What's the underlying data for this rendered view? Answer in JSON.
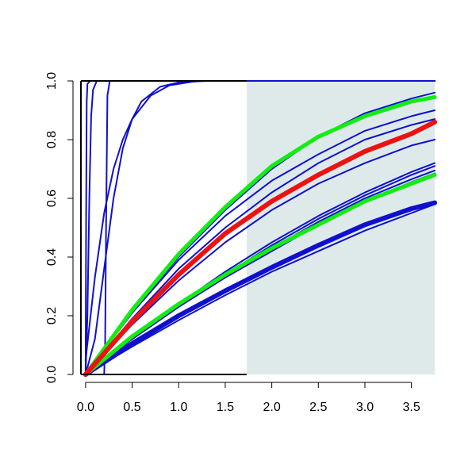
{
  "chart_data": {
    "type": "line",
    "title": "",
    "xlabel": "",
    "ylabel": "",
    "xlim": [
      -0.05,
      3.75
    ],
    "ylim": [
      0,
      1
    ],
    "x_ticks": [
      0.0,
      0.5,
      1.0,
      1.5,
      2.0,
      2.5,
      3.0,
      3.5
    ],
    "x_tick_labels": [
      "0.0",
      "0.5",
      "1.0",
      "1.5",
      "2.0",
      "2.5",
      "3.0",
      "3.5"
    ],
    "y_ticks": [
      0.0,
      0.2,
      0.4,
      0.6,
      0.8,
      1.0
    ],
    "y_tick_labels": [
      "0.0",
      "0.2",
      "0.4",
      "0.6",
      "0.8",
      "1.0"
    ],
    "grid": false,
    "legend": "none",
    "shaded_region": {
      "x_from": 1.73,
      "x_to": 3.75,
      "color": "#deeaea"
    },
    "colors": {
      "blue": "#1010cc",
      "red": "#ee1111",
      "green": "#11ee11",
      "axis": "#000000"
    },
    "series": [
      {
        "color": "blue",
        "width": 2,
        "points": [
          [
            0.0,
            0.0
          ],
          [
            0.005,
            0.5
          ],
          [
            0.012,
            0.93
          ],
          [
            0.02,
            0.99
          ],
          [
            0.05,
            1.0
          ],
          [
            3.75,
            1.0
          ]
        ]
      },
      {
        "color": "blue",
        "width": 2,
        "points": [
          [
            0.0,
            0.0
          ],
          [
            0.02,
            0.2
          ],
          [
            0.04,
            0.6
          ],
          [
            0.06,
            0.88
          ],
          [
            0.08,
            0.97
          ],
          [
            0.12,
            1.0
          ],
          [
            3.75,
            1.0
          ]
        ]
      },
      {
        "color": "blue",
        "width": 2,
        "points": [
          [
            0.2,
            0.0
          ],
          [
            0.21,
            0.1
          ],
          [
            0.22,
            0.5
          ],
          [
            0.235,
            0.95
          ],
          [
            0.26,
            1.0
          ],
          [
            3.75,
            1.0
          ]
        ]
      },
      {
        "color": "blue",
        "width": 2,
        "points": [
          [
            0.0,
            0.05
          ],
          [
            0.1,
            0.33
          ],
          [
            0.2,
            0.55
          ],
          [
            0.3,
            0.7
          ],
          [
            0.4,
            0.8
          ],
          [
            0.5,
            0.87
          ],
          [
            0.7,
            0.95
          ],
          [
            0.9,
            0.985
          ],
          [
            1.2,
            1.0
          ],
          [
            3.75,
            1.0
          ]
        ]
      },
      {
        "color": "blue",
        "width": 2,
        "points": [
          [
            0.0,
            0.0
          ],
          [
            0.1,
            0.12
          ],
          [
            0.2,
            0.36
          ],
          [
            0.3,
            0.6
          ],
          [
            0.4,
            0.77
          ],
          [
            0.5,
            0.87
          ],
          [
            0.6,
            0.93
          ],
          [
            0.8,
            0.98
          ],
          [
            1.0,
            0.995
          ],
          [
            1.3,
            1.0
          ],
          [
            3.75,
            1.0
          ]
        ]
      },
      {
        "color": "blue",
        "width": 2,
        "points": [
          [
            0.0,
            0.0
          ],
          [
            0.5,
            0.21
          ],
          [
            1.0,
            0.39
          ],
          [
            1.5,
            0.54
          ],
          [
            2.0,
            0.66
          ],
          [
            2.5,
            0.75
          ],
          [
            3.0,
            0.83
          ],
          [
            3.5,
            0.88
          ],
          [
            3.75,
            0.9
          ]
        ]
      },
      {
        "color": "blue",
        "width": 2,
        "points": [
          [
            0.0,
            0.0
          ],
          [
            0.5,
            0.21
          ],
          [
            1.0,
            0.4
          ],
          [
            1.5,
            0.56
          ],
          [
            2.0,
            0.7
          ],
          [
            2.5,
            0.81
          ],
          [
            3.0,
            0.89
          ],
          [
            3.5,
            0.94
          ],
          [
            3.75,
            0.96
          ]
        ]
      },
      {
        "color": "blue",
        "width": 2,
        "points": [
          [
            0.0,
            0.0
          ],
          [
            0.5,
            0.17
          ],
          [
            1.0,
            0.32
          ],
          [
            1.5,
            0.45
          ],
          [
            2.0,
            0.56
          ],
          [
            2.5,
            0.65
          ],
          [
            3.0,
            0.72
          ],
          [
            3.5,
            0.78
          ],
          [
            3.75,
            0.8
          ]
        ]
      },
      {
        "color": "blue",
        "width": 2,
        "points": [
          [
            0.0,
            0.0
          ],
          [
            0.5,
            0.19
          ],
          [
            1.0,
            0.36
          ],
          [
            1.5,
            0.5
          ],
          [
            2.0,
            0.62
          ],
          [
            2.5,
            0.72
          ],
          [
            3.0,
            0.8
          ],
          [
            3.5,
            0.85
          ],
          [
            3.75,
            0.87
          ]
        ]
      },
      {
        "color": "blue",
        "width": 2,
        "points": [
          [
            0.0,
            0.0
          ],
          [
            0.5,
            0.13
          ],
          [
            1.0,
            0.24
          ],
          [
            1.5,
            0.35
          ],
          [
            2.0,
            0.45
          ],
          [
            2.5,
            0.54
          ],
          [
            3.0,
            0.62
          ],
          [
            3.5,
            0.69
          ],
          [
            3.75,
            0.72
          ]
        ]
      },
      {
        "color": "blue",
        "width": 2,
        "points": [
          [
            0.0,
            0.0
          ],
          [
            0.5,
            0.13
          ],
          [
            1.0,
            0.24
          ],
          [
            1.5,
            0.34
          ],
          [
            2.0,
            0.44
          ],
          [
            2.5,
            0.53
          ],
          [
            3.0,
            0.61
          ],
          [
            3.5,
            0.68
          ],
          [
            3.75,
            0.71
          ]
        ]
      },
      {
        "color": "blue",
        "width": 2,
        "points": [
          [
            0.0,
            0.0
          ],
          [
            0.5,
            0.125
          ],
          [
            1.0,
            0.235
          ],
          [
            1.5,
            0.335
          ],
          [
            2.0,
            0.43
          ],
          [
            2.5,
            0.52
          ],
          [
            3.0,
            0.6
          ],
          [
            3.5,
            0.665
          ],
          [
            3.75,
            0.695
          ]
        ]
      },
      {
        "color": "blue",
        "width": 2,
        "points": [
          [
            0.0,
            0.0
          ],
          [
            0.5,
            0.12
          ],
          [
            1.0,
            0.23
          ],
          [
            1.5,
            0.33
          ],
          [
            2.0,
            0.42
          ],
          [
            2.5,
            0.51
          ],
          [
            3.0,
            0.59
          ],
          [
            3.5,
            0.655
          ],
          [
            3.75,
            0.685
          ]
        ]
      },
      {
        "color": "blue",
        "width": 6,
        "points": [
          [
            0.0,
            0.0
          ],
          [
            0.5,
            0.105
          ],
          [
            1.0,
            0.2
          ],
          [
            1.5,
            0.285
          ],
          [
            2.0,
            0.365
          ],
          [
            2.5,
            0.44
          ],
          [
            3.0,
            0.51
          ],
          [
            3.5,
            0.565
          ],
          [
            3.75,
            0.585
          ]
        ]
      },
      {
        "color": "blue",
        "width": 2,
        "points": [
          [
            0.0,
            0.0
          ],
          [
            0.5,
            0.095
          ],
          [
            1.0,
            0.185
          ],
          [
            1.5,
            0.27
          ],
          [
            2.0,
            0.35
          ],
          [
            2.5,
            0.42
          ],
          [
            3.0,
            0.49
          ],
          [
            3.5,
            0.55
          ],
          [
            3.75,
            0.58
          ]
        ]
      },
      {
        "color": "green",
        "width": 5,
        "points": [
          [
            0.0,
            0.0
          ],
          [
            0.5,
            0.22
          ],
          [
            1.0,
            0.41
          ],
          [
            1.5,
            0.57
          ],
          [
            2.0,
            0.71
          ],
          [
            2.5,
            0.81
          ],
          [
            3.0,
            0.88
          ],
          [
            3.5,
            0.93
          ],
          [
            3.75,
            0.945
          ]
        ]
      },
      {
        "color": "green",
        "width": 5,
        "points": [
          [
            0.0,
            0.0
          ],
          [
            0.5,
            0.13
          ],
          [
            1.0,
            0.24
          ],
          [
            1.5,
            0.34
          ],
          [
            2.0,
            0.43
          ],
          [
            2.5,
            0.51
          ],
          [
            3.0,
            0.59
          ],
          [
            3.5,
            0.65
          ],
          [
            3.75,
            0.68
          ]
        ]
      },
      {
        "color": "red",
        "width": 6,
        "points": [
          [
            0.0,
            0.0
          ],
          [
            0.5,
            0.18
          ],
          [
            1.0,
            0.34
          ],
          [
            1.5,
            0.48
          ],
          [
            2.0,
            0.59
          ],
          [
            2.5,
            0.68
          ],
          [
            3.0,
            0.76
          ],
          [
            3.5,
            0.82
          ],
          [
            3.75,
            0.86
          ]
        ]
      }
    ]
  }
}
